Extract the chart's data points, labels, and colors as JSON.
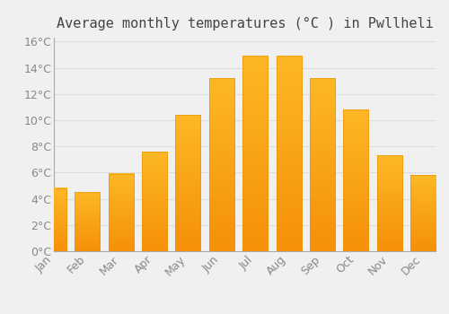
{
  "title": "Average monthly temperatures (°C ) in Pwllheli",
  "months": [
    "Jan",
    "Feb",
    "Mar",
    "Apr",
    "May",
    "Jun",
    "Jul",
    "Aug",
    "Sep",
    "Oct",
    "Nov",
    "Dec"
  ],
  "values": [
    4.8,
    4.5,
    5.9,
    7.6,
    10.4,
    13.2,
    14.9,
    14.9,
    13.2,
    10.8,
    7.3,
    5.8
  ],
  "bar_color_top": "#FDB827",
  "bar_color_bottom": "#F5900A",
  "bar_edge_color": "#E8950A",
  "background_color": "#F0F0F0",
  "grid_color": "#DDDDDD",
  "text_color": "#888888",
  "title_color": "#444444",
  "ylim": [
    0,
    16
  ],
  "ytick_step": 2,
  "title_fontsize": 11,
  "tick_fontsize": 9,
  "bar_width": 0.75
}
